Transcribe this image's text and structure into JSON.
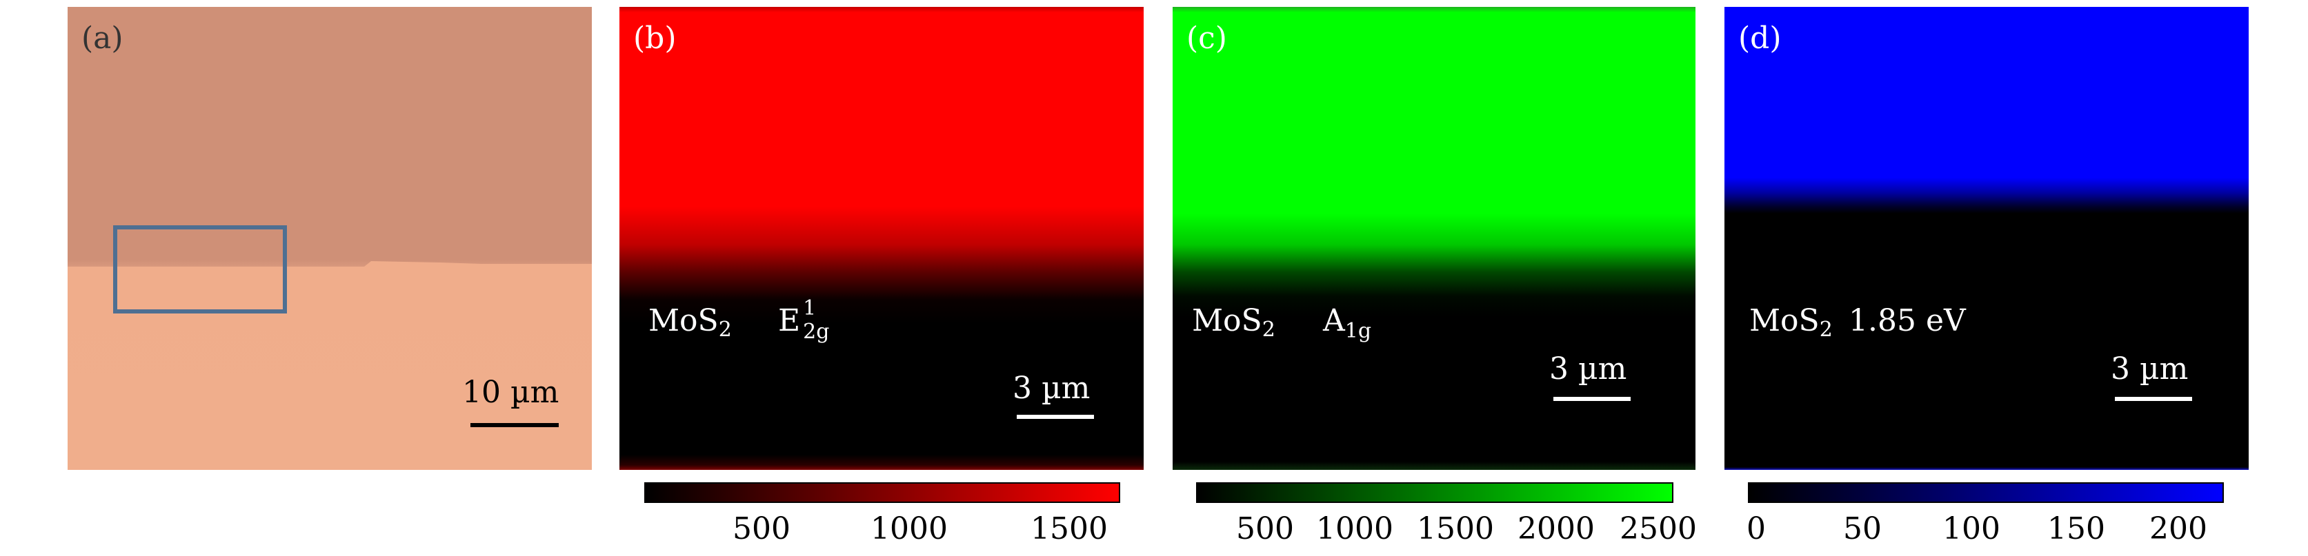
{
  "panels": {
    "a": {
      "label": "(a)",
      "scalebar": "10 µm"
    },
    "b": {
      "label": "(b)",
      "sample_main": "MoS",
      "sample_sub": "2",
      "mode_main": "E",
      "mode_sup": "1",
      "mode_sub": "2g",
      "scalebar": "3 µm",
      "colorbar": {
        "color": "#ff0000",
        "ticks": [
          "500",
          "1000",
          "1500"
        ]
      }
    },
    "c": {
      "label": "(c)",
      "sample_main": "MoS",
      "sample_sub": "2",
      "mode_main": "A",
      "mode_sub": "1g",
      "scalebar": "3 µm",
      "colorbar": {
        "color": "#00ff00",
        "ticks": [
          "500",
          "1000",
          "1500",
          "2000",
          "2500"
        ]
      }
    },
    "d": {
      "label": "(d)",
      "sample_main": "MoS",
      "sample_sub": "2",
      "energy": "1.85 eV",
      "scalebar": "3 µm",
      "colorbar": {
        "color": "#0000ff",
        "ticks": [
          "0",
          "50",
          "100",
          "150",
          "200"
        ]
      }
    }
  }
}
